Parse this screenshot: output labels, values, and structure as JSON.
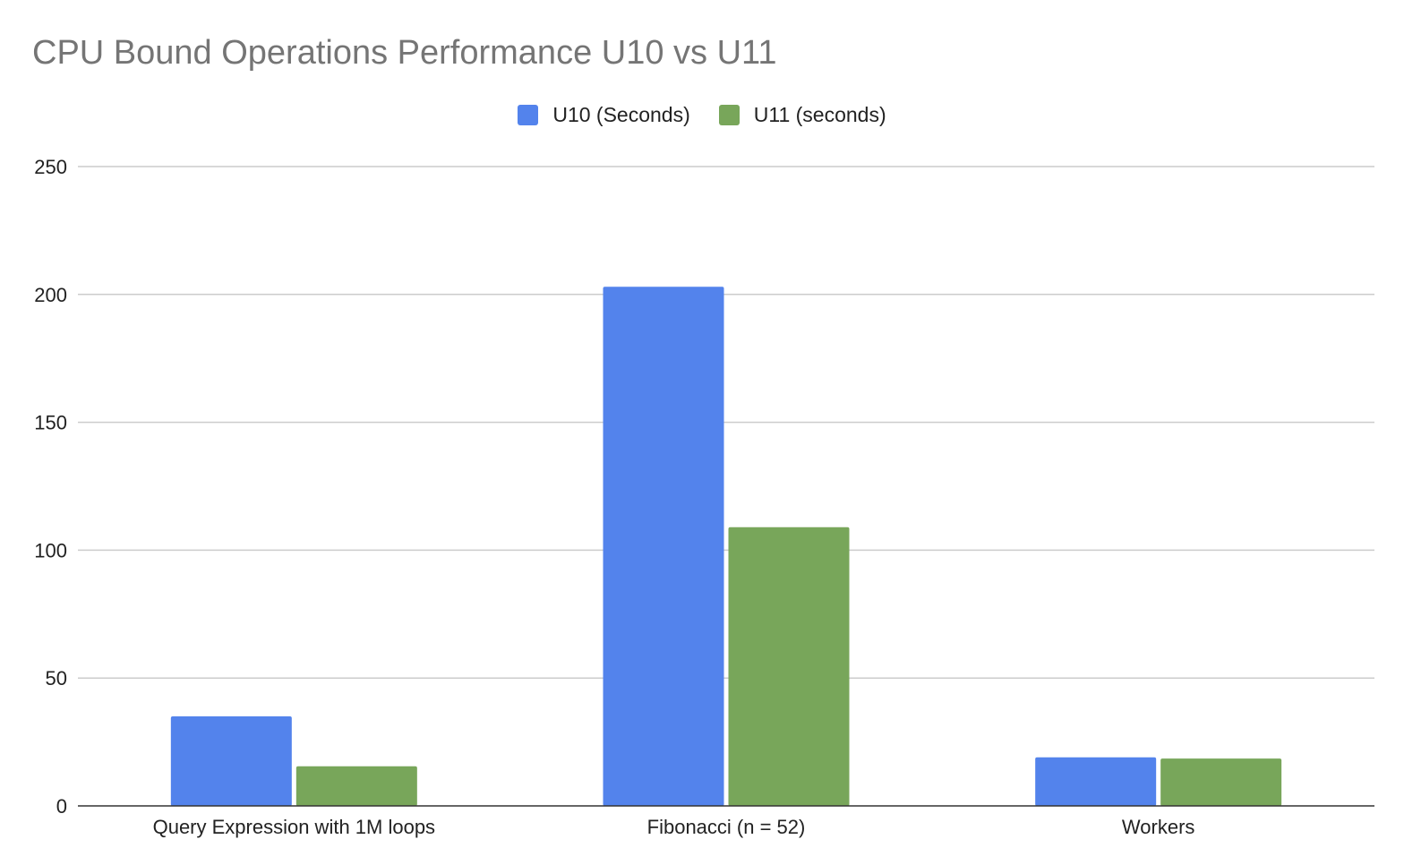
{
  "chart_data": {
    "type": "bar",
    "title": "CPU Bound Operations Performance U10 vs U11",
    "xlabel": "",
    "ylabel": "",
    "categories": [
      "Query Expression with 1M loops",
      "Fibonacci (n = 52)",
      "Workers"
    ],
    "series": [
      {
        "name": "U10 (Seconds)",
        "color": "#5383EC",
        "values": [
          35,
          203,
          19
        ]
      },
      {
        "name": "U11 (seconds)",
        "color": "#78A65A",
        "values": [
          15.5,
          109,
          18.5
        ]
      }
    ],
    "ylim": [
      0,
      250
    ],
    "yticks": [
      0,
      50,
      100,
      150,
      200,
      250
    ],
    "grid": true,
    "legend_position": "top-center"
  }
}
